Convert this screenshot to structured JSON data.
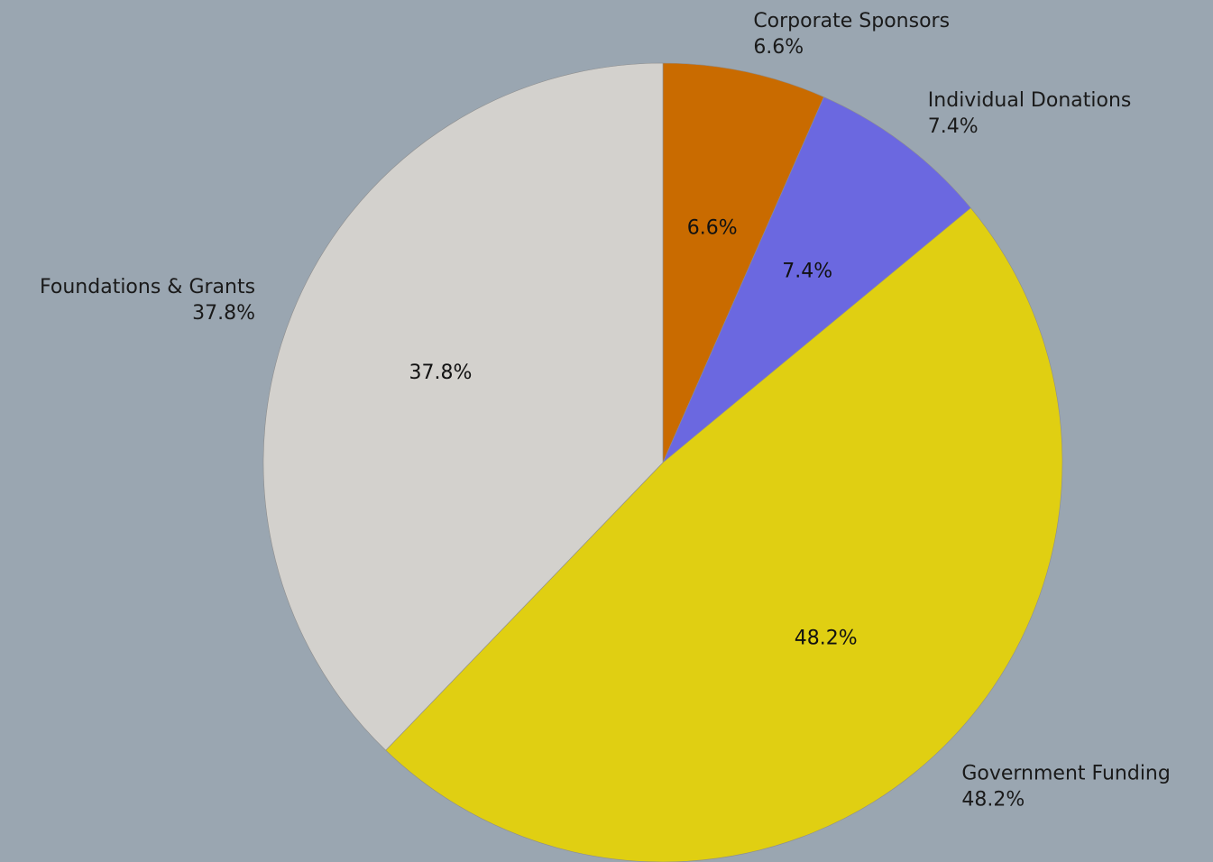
{
  "chart_data": {
    "type": "pie",
    "title": "",
    "start_angle_deg": 90,
    "direction": "clockwise",
    "slices": [
      {
        "label": "Corporate Sponsors",
        "value": 6.6,
        "pct_text": "6.6%",
        "color": "#c96b00"
      },
      {
        "label": "Individual Donations",
        "value": 7.4,
        "pct_text": "7.4%",
        "color": "#6b68e0"
      },
      {
        "label": "Government Funding",
        "value": 48.2,
        "pct_text": "48.2%",
        "color": "#e0cf12"
      },
      {
        "label": "Foundations & Grants",
        "value": 37.8,
        "pct_text": "37.8%",
        "color": "#d3d1cd"
      }
    ]
  }
}
